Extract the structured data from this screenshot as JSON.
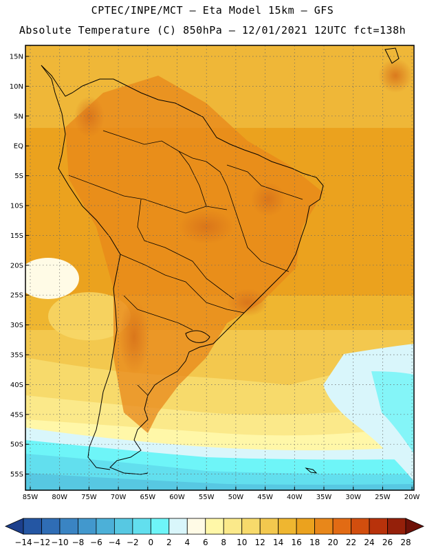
{
  "header": {
    "line1": "CPTEC/INPE/MCT –  Eta Model 15km – GFS",
    "line2": "Absolute Temperature (C) 850hPa – 12/01/2021 12UTC fct=138h"
  },
  "map": {
    "lat_labels": [
      "15N",
      "10N",
      "5N",
      "EQ",
      "5S",
      "10S",
      "15S",
      "20S",
      "25S",
      "30S",
      "35S",
      "40S",
      "45S",
      "50S",
      "55S"
    ],
    "lon_labels": [
      "85W",
      "80W",
      "75W",
      "70W",
      "65W",
      "60W",
      "55W",
      "50W",
      "45W",
      "40W",
      "35W",
      "30W",
      "25W",
      "20W"
    ]
  },
  "colorbar": {
    "labels": [
      "-14",
      "-12",
      "-10",
      "-8",
      "-6",
      "-4",
      "-2",
      "0",
      "2",
      "4",
      "6",
      "8",
      "10",
      "12",
      "14",
      "16",
      "18",
      "20",
      "22",
      "24",
      "26",
      "28"
    ],
    "colors": [
      "#1c3f8c",
      "#2456a3",
      "#2f6db5",
      "#3a84c3",
      "#4298cd",
      "#4cb0d8",
      "#57c8e2",
      "#62dfee",
      "#6ef5f8",
      "#d9f6fb",
      "#fffbe6",
      "#fff7a8",
      "#fbe98a",
      "#f7da6b",
      "#f3c84e",
      "#efb630",
      "#eba21e",
      "#e8871a",
      "#e26b14",
      "#d24e0e",
      "#b8320b",
      "#95200a",
      "#6d1108"
    ]
  }
}
